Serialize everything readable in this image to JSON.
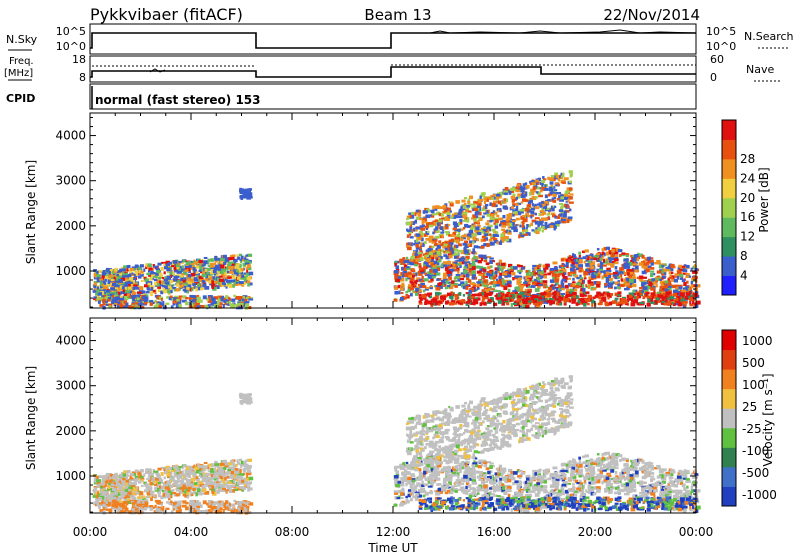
{
  "header": {
    "title_left": "Pykkvibaer (fitACF)",
    "title_center": "Beam 13",
    "title_right": "22/Nov/2014"
  },
  "panels": {
    "nsky": {
      "label": "N.Sky",
      "left_ticks": [
        "10^5",
        "10^0"
      ],
      "right_label": "N.Search",
      "right_ticks": [
        "10^5",
        "10^0"
      ]
    },
    "freq": {
      "label_line1": "Freq.",
      "label_line2": "[MHz]",
      "left_ticks": [
        "18",
        "8"
      ],
      "right_label": "Nave",
      "right_ticks": [
        "60",
        "0"
      ]
    },
    "cpid": {
      "label": "CPID",
      "text": "normal (fast stereo) 153"
    }
  },
  "chart_data": [
    {
      "type": "heatmap",
      "ylabel": "Slant Range [km]",
      "y_ticks": [
        "1000",
        "2000",
        "3000",
        "4000"
      ],
      "ylim": [
        180,
        4500
      ],
      "colorbar": {
        "label": "Power [dB]",
        "ticks": [
          "4",
          "8",
          "12",
          "16",
          "20",
          "24",
          "28"
        ],
        "colors": [
          "#1f1fff",
          "#3a5fcd",
          "#2f8f60",
          "#5fba5f",
          "#a0d050",
          "#f0d040",
          "#f09020",
          "#e85010",
          "#e01010"
        ]
      }
    },
    {
      "type": "heatmap",
      "ylabel": "Slant Range [km]",
      "y_ticks": [
        "1000",
        "2000",
        "3000",
        "4000"
      ],
      "ylim": [
        180,
        4500
      ],
      "colorbar": {
        "label": "Velocity [m s⁻¹]",
        "ticks": [
          "1000",
          "500",
          "100",
          "25",
          "-25",
          "-100",
          "-500",
          "-1000"
        ],
        "colors": [
          "#2040c0",
          "#4070c8",
          "#308050",
          "#60c040",
          "#c0c0c0",
          "#f0c040",
          "#f08020",
          "#e04010",
          "#e00000"
        ]
      }
    }
  ],
  "x_axis": {
    "label": "Time UT",
    "ticks": [
      "00:00",
      "04:00",
      "08:00",
      "12:00",
      "16:00",
      "20:00",
      "00:00"
    ]
  }
}
